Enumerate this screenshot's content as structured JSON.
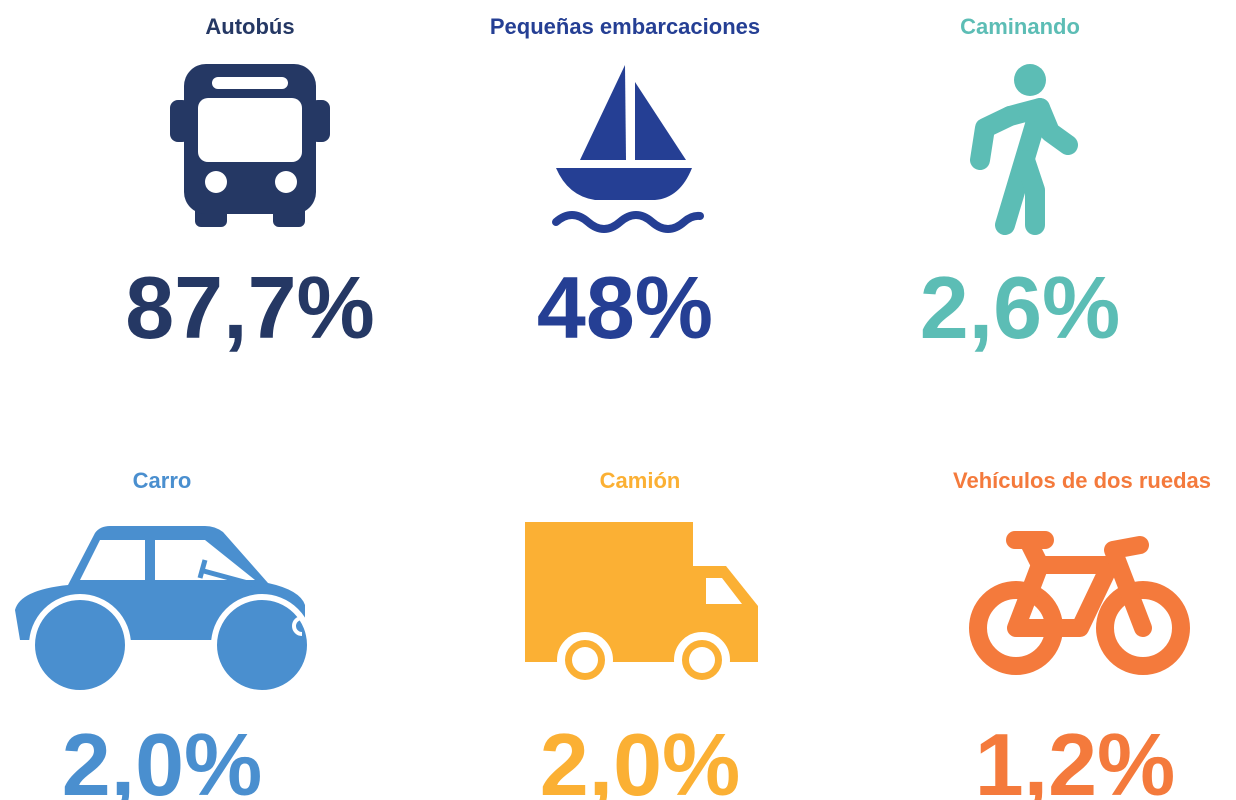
{
  "items": [
    {
      "label": "Autobús",
      "value": "87,7%"
    },
    {
      "label": "Pequeñas embarcaciones",
      "value": "48%"
    },
    {
      "label": "Caminando",
      "value": "2,6%"
    },
    {
      "label": "Carro",
      "value": "2,0%"
    },
    {
      "label": "Camión",
      "value": "2,0%"
    },
    {
      "label": "Vehículos de dos ruedas",
      "value": "1,2%"
    }
  ]
}
